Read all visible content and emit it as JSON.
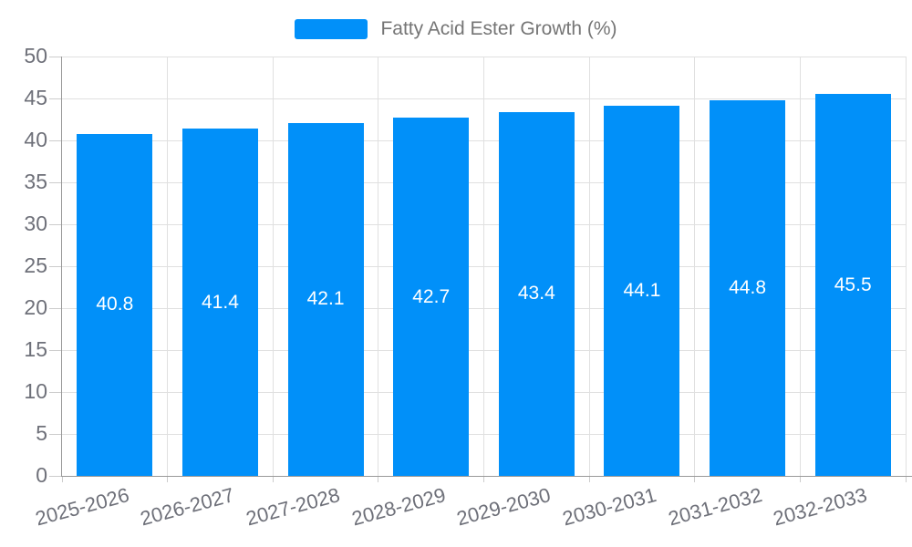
{
  "legend": {
    "label": "Fatty Acid Ester Growth (%)"
  },
  "colors": {
    "bar": "#0190F9",
    "grid": "#e0e0e0",
    "axis_line": "#999999",
    "tick": "#cccccc",
    "axis_text": "#6E7079",
    "legend_text": "#757575",
    "bar_label_text": "#ffffff",
    "background": "#ffffff"
  },
  "chart_data": {
    "type": "bar",
    "title": "Fatty Acid Ester Growth (%)",
    "categories": [
      "2025-2026",
      "2026-2027",
      "2027-2028",
      "2028-2029",
      "2029-2030",
      "2030-2031",
      "2031-2032",
      "2032-2033"
    ],
    "values": [
      40.8,
      41.4,
      42.1,
      42.7,
      43.4,
      44.1,
      44.8,
      45.5
    ],
    "value_labels": [
      "40.8",
      "41.4",
      "42.1",
      "42.7",
      "43.4",
      "44.1",
      "44.8",
      "45.5"
    ],
    "ytick_labels": [
      "0",
      "5",
      "10",
      "15",
      "20",
      "25",
      "30",
      "35",
      "40",
      "45",
      "50"
    ],
    "xlabel": "",
    "ylabel": "",
    "ylim": [
      0,
      50
    ],
    "ytick_step": 5,
    "grid": true,
    "legend_position": "top-center",
    "bar_label_position": "inside-center",
    "x_label_rotation_deg": -15
  }
}
